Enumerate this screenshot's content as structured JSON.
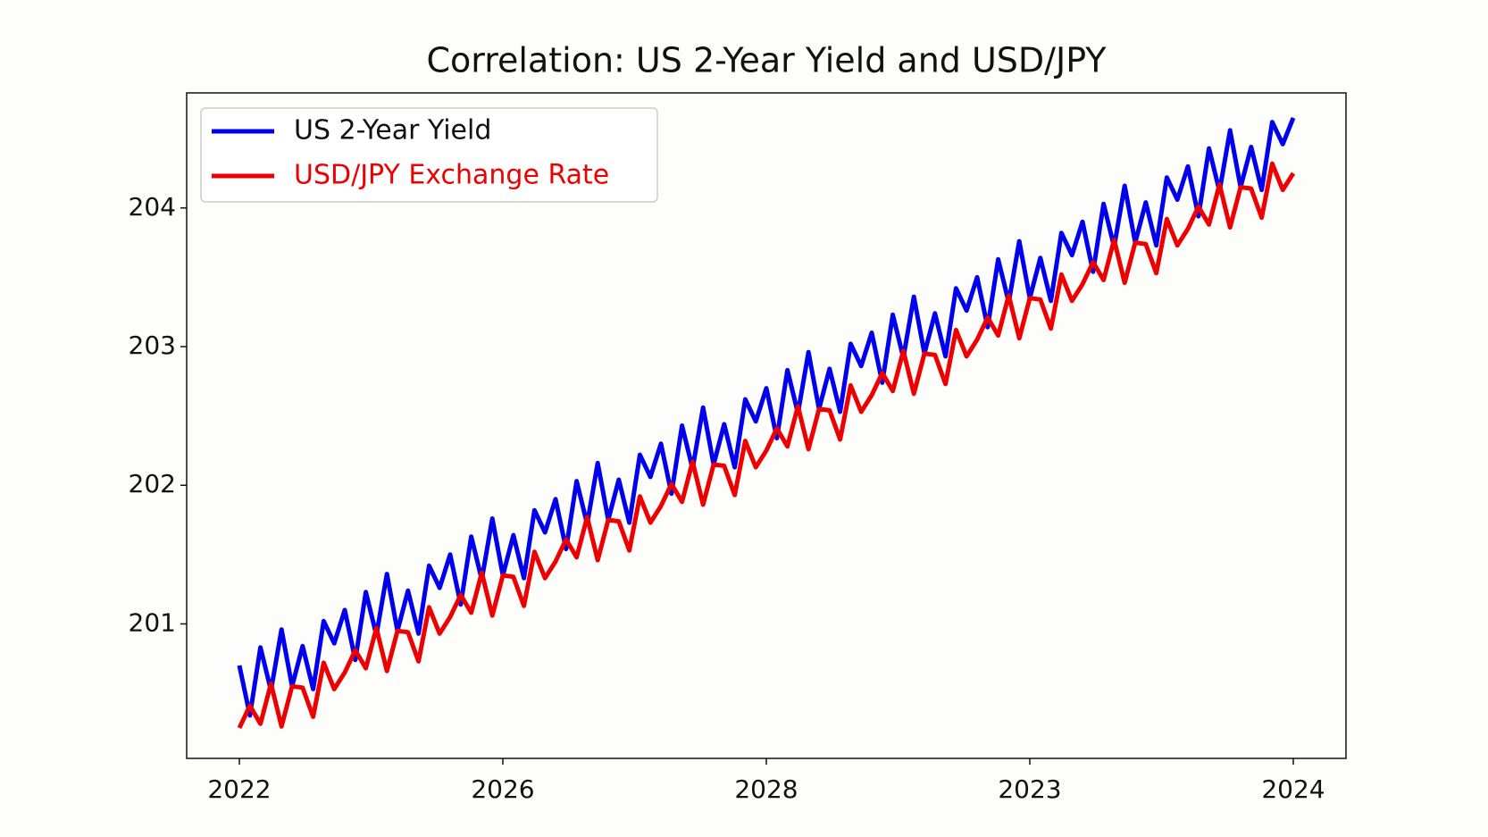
{
  "chart_data": {
    "type": "line",
    "title": "Correlation: US 2-Year Yield and USD/JPY",
    "x": [
      0,
      1,
      2,
      3,
      4,
      5,
      6,
      7,
      8,
      9,
      10,
      11,
      12,
      13,
      14,
      15,
      16,
      17,
      18,
      19,
      20,
      21,
      22,
      23,
      24,
      25,
      26,
      27,
      28,
      29,
      30,
      31,
      32,
      33,
      34,
      35,
      36,
      37,
      38,
      39,
      40,
      41,
      42,
      43,
      44,
      45,
      46,
      47,
      48,
      49,
      50,
      51,
      52,
      53,
      54,
      55,
      56,
      57,
      58,
      59,
      60,
      61,
      62,
      63,
      64,
      65,
      66,
      67,
      68,
      69,
      70,
      71,
      72,
      73,
      74,
      75,
      76,
      77,
      78,
      79,
      80,
      81,
      82,
      83,
      84,
      85,
      86,
      87,
      88,
      89,
      90,
      91,
      92,
      93,
      94,
      95,
      96,
      97,
      98,
      99,
      100
    ],
    "series": [
      {
        "name": "US 2-Year Yield",
        "color": "#0000ee",
        "values": [
          200.7,
          200.34,
          200.83,
          200.52,
          200.96,
          200.55,
          200.84,
          200.53,
          201.02,
          200.86,
          201.1,
          200.74,
          201.23,
          200.92,
          201.36,
          200.95,
          201.24,
          200.93,
          201.42,
          201.26,
          201.5,
          201.14,
          201.63,
          201.32,
          201.76,
          201.35,
          201.64,
          201.33,
          201.82,
          201.66,
          201.9,
          201.54,
          202.03,
          201.72,
          202.16,
          201.75,
          202.04,
          201.73,
          202.22,
          202.06,
          202.3,
          201.94,
          202.43,
          202.12,
          202.56,
          202.15,
          202.44,
          202.13,
          202.62,
          202.46,
          202.7,
          202.34,
          202.83,
          202.52,
          202.96,
          202.55,
          202.84,
          202.53,
          203.02,
          202.86,
          203.1,
          202.74,
          203.23,
          202.92,
          203.36,
          202.95,
          203.24,
          202.93,
          203.42,
          203.26,
          203.5,
          203.14,
          203.63,
          203.32,
          203.76,
          203.35,
          203.64,
          203.33,
          203.82,
          203.66,
          203.9,
          203.54,
          204.03,
          203.72,
          204.16,
          203.75,
          204.04,
          203.73,
          204.22,
          204.06,
          204.3,
          203.94,
          204.43,
          204.12,
          204.56,
          204.15,
          204.44,
          204.13,
          204.62,
          204.46,
          204.65
        ]
      },
      {
        "name": "USD/JPY Exchange Rate",
        "color": "#ee0000",
        "values": [
          200.25,
          200.41,
          200.28,
          200.57,
          200.26,
          200.55,
          200.54,
          200.33,
          200.72,
          200.53,
          200.65,
          200.81,
          200.68,
          200.97,
          200.66,
          200.95,
          200.94,
          200.73,
          201.12,
          200.93,
          201.05,
          201.21,
          201.08,
          201.37,
          201.06,
          201.35,
          201.34,
          201.13,
          201.52,
          201.33,
          201.45,
          201.61,
          201.48,
          201.77,
          201.46,
          201.75,
          201.74,
          201.53,
          201.92,
          201.73,
          201.85,
          202.01,
          201.88,
          202.17,
          201.86,
          202.15,
          202.14,
          201.93,
          202.32,
          202.13,
          202.25,
          202.41,
          202.28,
          202.57,
          202.26,
          202.55,
          202.54,
          202.33,
          202.72,
          202.53,
          202.65,
          202.81,
          202.68,
          202.97,
          202.66,
          202.95,
          202.94,
          202.73,
          203.12,
          202.93,
          203.05,
          203.21,
          203.08,
          203.37,
          203.06,
          203.35,
          203.34,
          203.13,
          203.52,
          203.33,
          203.45,
          203.61,
          203.48,
          203.77,
          203.46,
          203.75,
          203.74,
          203.53,
          203.92,
          203.73,
          203.85,
          204.01,
          203.88,
          204.17,
          203.86,
          204.15,
          204.14,
          203.93,
          204.32,
          204.13,
          204.25
        ]
      }
    ],
    "xlim": [
      -5,
      105
    ],
    "ylim": [
      200.03,
      204.83
    ],
    "xticks": [
      {
        "value": 0,
        "label": "2022"
      },
      {
        "value": 25,
        "label": "2026"
      },
      {
        "value": 50,
        "label": "2028"
      },
      {
        "value": 75,
        "label": "2023"
      },
      {
        "value": 100,
        "label": "2024"
      }
    ],
    "yticks": [
      201,
      202,
      203,
      204
    ],
    "legend": "upper left",
    "grid": false
  }
}
